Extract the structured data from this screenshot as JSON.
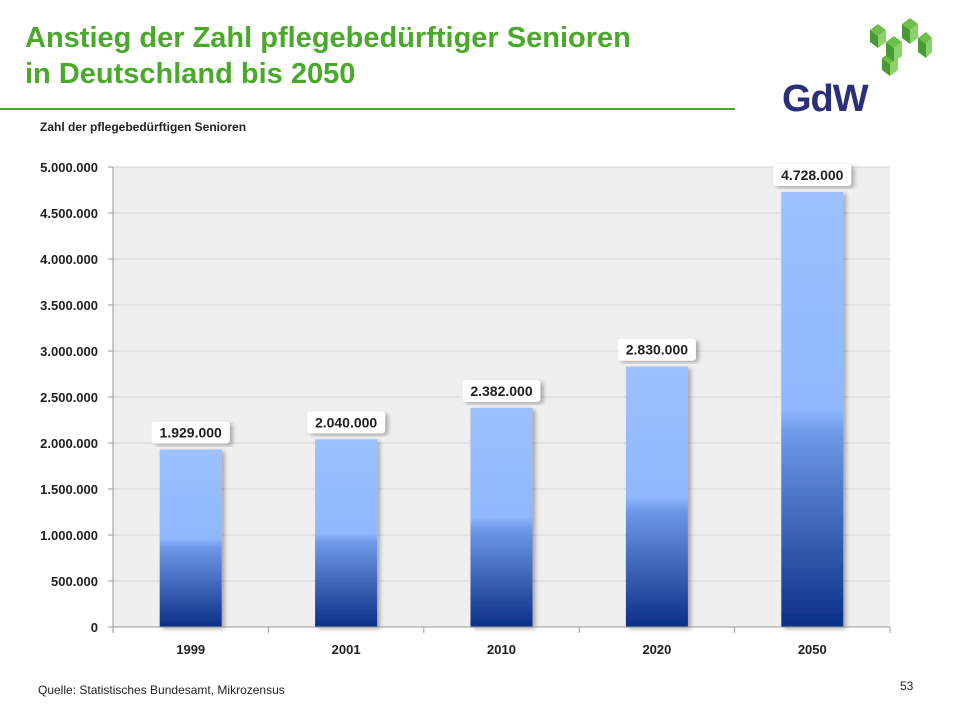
{
  "slide": {
    "title_line1": "Anstieg der Zahl pflegebedürftiger Senioren",
    "title_line2": "in Deutschland bis 2050",
    "subtitle": "Zahl der pflegebedürftigen Senioren",
    "source": "Quelle: Statistisches Bundesamt, Mikrozensus",
    "page_number": "53",
    "logo_text": "GdW"
  },
  "colors": {
    "title_green": "#4aa82a",
    "bar_top": "#8fb8ff",
    "bar_bottom": "#0b2f86",
    "plot_bg": "#efefef",
    "logo_green": "#6cc04a",
    "logo_navy": "#2b2f7a"
  },
  "chart_data": {
    "type": "bar",
    "title": "Zahl der pflegebedürftigen Senioren",
    "xlabel": "",
    "ylabel": "",
    "categories": [
      "1999",
      "2001",
      "2010",
      "2020",
      "2050"
    ],
    "values": [
      1929000,
      2040000,
      2382000,
      2830000,
      4728000
    ],
    "value_labels": [
      "1.929.000",
      "2.040.000",
      "2.382.000",
      "2.830.000",
      "4.728.000"
    ],
    "ylim": [
      0,
      5000000
    ],
    "yticks": [
      0,
      500000,
      1000000,
      1500000,
      2000000,
      2500000,
      3000000,
      3500000,
      4000000,
      4500000,
      5000000
    ],
    "ytick_labels": [
      "0",
      "500.000",
      "1.000.000",
      "1.500.000",
      "2.000.000",
      "2.500.000",
      "3.000.000",
      "3.500.000",
      "4.000.000",
      "4.500.000",
      "5.000.000"
    ],
    "grid": true
  }
}
